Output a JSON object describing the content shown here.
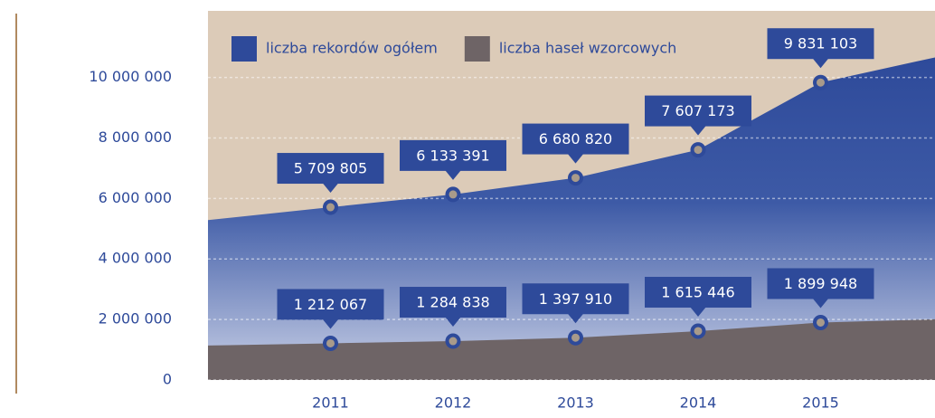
{
  "chart_data": {
    "type": "area",
    "categories": [
      "2011",
      "2012",
      "2013",
      "2014",
      "2015"
    ],
    "series": [
      {
        "name": "liczba rekordów ogółem",
        "color": "#2e4a9a",
        "values": [
          5709805,
          6133391,
          6680820,
          7607173,
          9831103
        ],
        "value_labels": [
          "5 709 805",
          "6 133 391",
          "6 680 820",
          "7 607 173",
          "9 831 103"
        ]
      },
      {
        "name": "liczba haseł wzorcowych",
        "color": "#6e6466",
        "values": [
          1212067,
          1284838,
          1397910,
          1615446,
          1899948
        ],
        "value_labels": [
          "1 212 067",
          "1 284 838",
          "1 397 910",
          "1 615 446",
          "1 899 948"
        ]
      }
    ],
    "ylim": [
      0,
      12200000
    ],
    "yticks": [
      0,
      {
        "value": 2000000,
        "label": "2 000 000"
      },
      {
        "value": 4000000,
        "label": "4 000 000"
      },
      {
        "value": 6000000,
        "label": "6 000 000"
      },
      {
        "value": 8000000,
        "label": "8 000 000"
      },
      {
        "value": 10000000,
        "label": "10 000 000"
      }
    ],
    "grid": true,
    "legend": "top-left",
    "background": "#dccbb8"
  }
}
